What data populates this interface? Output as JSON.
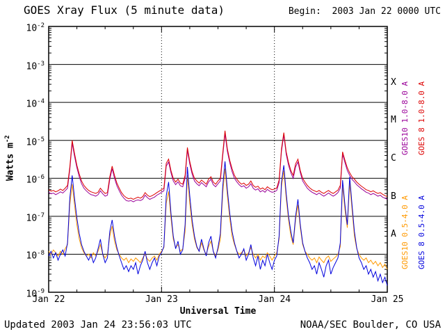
{
  "header": {
    "title": "GOES Xray Flux (5 minute data)",
    "begin": "Begin:  2003 Jan 22 0000 UTC"
  },
  "footer": {
    "updated": "Updated 2003 Jan 24 23:56:03 UTC",
    "credit": "NOAA/SEC Boulder, CO USA"
  },
  "chart_data": {
    "type": "line",
    "title": "GOES Xray Flux (5 minute data)",
    "xlabel": "Universal Time",
    "ylabel": {
      "base": "Watts m",
      "exp": "-2"
    },
    "y_scale": "log",
    "ylim_exponents": [
      -9,
      -2
    ],
    "y_tick_exponents": [
      -2,
      -3,
      -4,
      -5,
      -6,
      -7,
      -8,
      -9
    ],
    "x_range_hours": 72,
    "x_step_hours": 0.5,
    "x_minor_tick_hours": 6,
    "x_tick_hours": [
      0,
      24,
      48,
      72
    ],
    "x_tick_labels": [
      "Jan 22",
      "Jan 23",
      "Jan 24",
      "Jan 25"
    ],
    "grid": {
      "horizontal_decade_lines": true,
      "vertical_day_lines": "dotted",
      "legend_position": "right-rotated"
    },
    "flux_classes": [
      {
        "label": "X",
        "log_center": -3.5
      },
      {
        "label": "M",
        "log_center": -4.5
      },
      {
        "label": "C",
        "log_center": -5.5
      },
      {
        "label": "B",
        "log_center": -6.5
      },
      {
        "label": "A",
        "log_center": -7.5
      }
    ],
    "series": [
      {
        "id": "goes10-long",
        "name": "GOES10 1.0-8.0 A",
        "color": "#990099",
        "values": [
          4.3e-07,
          3.9e-07,
          4.1e-07,
          3.7e-07,
          4e-07,
          4.4e-07,
          4.1e-07,
          4.7e-07,
          5.5e-07,
          1.7e-06,
          8.5e-06,
          3.8e-06,
          1.9e-06,
          1.1e-06,
          7.2e-07,
          5.5e-07,
          4.7e-07,
          4.1e-07,
          3.7e-07,
          3.6e-07,
          3.4e-07,
          3.7e-07,
          4.7e-07,
          3.9e-07,
          3.4e-07,
          3.6e-07,
          9.4e-07,
          1.8e-06,
          1e-06,
          6.4e-07,
          4.7e-07,
          3.6e-07,
          3e-07,
          2.6e-07,
          2.5e-07,
          2.6e-07,
          2.4e-07,
          2.6e-07,
          2.7e-07,
          2.6e-07,
          2.8e-07,
          3.6e-07,
          3.1e-07,
          2.8e-07,
          3e-07,
          3.2e-07,
          3.6e-07,
          3.9e-07,
          4.3e-07,
          4.7e-07,
          2.1e-06,
          2.7e-06,
          1.4e-06,
          8.5e-07,
          6.8e-07,
          8.1e-07,
          6.4e-07,
          6e-07,
          1e-06,
          5.5e-06,
          2.4e-06,
          1.3e-06,
          8.5e-07,
          7.2e-07,
          6.4e-07,
          7.7e-07,
          6.8e-07,
          6e-07,
          8.1e-07,
          9.4e-07,
          6.8e-07,
          6e-07,
          7.2e-07,
          8.5e-07,
          3.8e-06,
          1.5e-05,
          5.1e-06,
          2.6e-06,
          1.5e-06,
          1e-06,
          8.1e-07,
          6.8e-07,
          6e-07,
          6.4e-07,
          5.5e-07,
          6e-07,
          7.2e-07,
          5.5e-07,
          4.9e-07,
          5.3e-07,
          4.4e-07,
          4.8e-07,
          4.3e-07,
          5.1e-07,
          4.6e-07,
          4.3e-07,
          4.4e-07,
          4.8e-07,
          7.7e-07,
          5.1e-06,
          1.4e-05,
          4.3e-06,
          2.2e-06,
          1.4e-06,
          1e-06,
          2e-06,
          2.7e-06,
          1.4e-06,
          8.5e-07,
          6.8e-07,
          5.5e-07,
          4.8e-07,
          4.3e-07,
          4e-07,
          3.7e-07,
          4.1e-07,
          3.7e-07,
          3.4e-07,
          3.7e-07,
          4.1e-07,
          3.7e-07,
          3.4e-07,
          3.7e-07,
          4.2e-07,
          5.5e-07,
          4.3e-06,
          2.6e-06,
          1.6e-06,
          1.2e-06,
          9.4e-07,
          8.1e-07,
          6.8e-07,
          6e-07,
          5.3e-07,
          4.8e-07,
          4.3e-07,
          4.1e-07,
          3.7e-07,
          4e-07,
          3.7e-07,
          3.4e-07,
          3.6e-07,
          3.2e-07,
          3e-07,
          2.8e-07
        ]
      },
      {
        "id": "goes10-short",
        "name": "GOES10 0.5-4.0 A",
        "color": "#ff9900",
        "values": [
          1.2e-08,
          1e-08,
          1.3e-08,
          1.1e-08,
          9e-09,
          1.2e-08,
          1e-08,
          1.4e-08,
          1.8e-08,
          2e-07,
          7e-07,
          2e-07,
          6e-08,
          2.5e-08,
          1.5e-08,
          1.1e-08,
          9e-09,
          1e-08,
          8e-09,
          1.1e-08,
          9e-09,
          1.2e-08,
          1.8e-08,
          1e-08,
          8e-09,
          1e-08,
          3e-08,
          5.5e-08,
          2.2e-08,
          1.3e-08,
          1e-08,
          8e-09,
          7e-09,
          8e-09,
          6e-09,
          7.5e-09,
          6.5e-09,
          8e-09,
          7e-09,
          6e-09,
          8e-09,
          1e-08,
          7.5e-09,
          6.5e-09,
          8e-09,
          9e-09,
          7e-09,
          1e-08,
          1.2e-08,
          1.5e-08,
          2.2e-07,
          4.5e-07,
          9e-08,
          2.5e-08,
          1.5e-08,
          1.8e-08,
          1.2e-08,
          1.4e-08,
          4e-08,
          1.2e-06,
          2.2e-07,
          6e-08,
          2.5e-08,
          1.5e-08,
          1.2e-08,
          2e-08,
          1.3e-08,
          1e-08,
          1.6e-08,
          2.2e-08,
          1.2e-08,
          9e-09,
          1.3e-08,
          2.5e-08,
          4e-07,
          1.8e-06,
          3.5e-07,
          9e-08,
          3e-08,
          1.8e-08,
          1.2e-08,
          1e-08,
          1.1e-08,
          1.3e-08,
          9e-09,
          1.1e-08,
          1.5e-08,
          1e-08,
          8e-09,
          1e-08,
          7e-09,
          9e-09,
          8e-09,
          1.1e-08,
          9e-09,
          7e-09,
          9e-09,
          1.1e-08,
          2.5e-08,
          6e-07,
          1.6e-06,
          3e-07,
          8e-08,
          3e-08,
          1.8e-08,
          8e-08,
          2e-07,
          5e-08,
          1.8e-08,
          1.2e-08,
          1e-08,
          8e-09,
          7e-09,
          8e-09,
          6e-09,
          8.5e-09,
          7e-09,
          6e-09,
          8e-09,
          9e-09,
          6.5e-09,
          7.5e-09,
          8.5e-09,
          1e-08,
          1.6e-08,
          6.5e-07,
          1.5e-07,
          5e-08,
          7.5e-07,
          1.5e-07,
          3e-08,
          1.4e-08,
          1e-08,
          8e-09,
          7e-09,
          8e-09,
          6e-09,
          7e-09,
          5.5e-09,
          6.5e-09,
          5e-09,
          6e-09,
          4.5e-09,
          5.5e-09,
          4e-09
        ]
      },
      {
        "id": "goes8-long",
        "name": "GOES 8 1.0-8.0 A",
        "color": "#dd0000",
        "values": [
          5e-07,
          4.6e-07,
          4.8e-07,
          4.4e-07,
          4.7e-07,
          5.2e-07,
          4.8e-07,
          5.5e-07,
          6.5e-07,
          2e-06,
          1e-05,
          4.5e-06,
          2.2e-06,
          1.3e-06,
          8.5e-07,
          6.5e-07,
          5.5e-07,
          4.8e-07,
          4.4e-07,
          4.2e-07,
          4e-07,
          4.3e-07,
          5.5e-07,
          4.6e-07,
          4e-07,
          4.2e-07,
          1.1e-06,
          2.1e-06,
          1.2e-06,
          7.5e-07,
          5.5e-07,
          4.2e-07,
          3.5e-07,
          3.1e-07,
          2.9e-07,
          3e-07,
          2.8e-07,
          3e-07,
          3.2e-07,
          3e-07,
          3.3e-07,
          4.2e-07,
          3.6e-07,
          3.3e-07,
          3.5e-07,
          3.8e-07,
          4.2e-07,
          4.6e-07,
          5e-07,
          5.5e-07,
          2.5e-06,
          3.2e-06,
          1.6e-06,
          1e-06,
          8e-07,
          9.5e-07,
          7.5e-07,
          7e-07,
          1.2e-06,
          6.5e-06,
          2.8e-06,
          1.5e-06,
          1e-06,
          8.5e-07,
          7.5e-07,
          9e-07,
          8e-07,
          7e-07,
          9.5e-07,
          1.1e-06,
          8e-07,
          7e-07,
          8.5e-07,
          1e-06,
          4.5e-06,
          1.8e-05,
          6e-06,
          3e-06,
          1.8e-06,
          1.2e-06,
          9.5e-07,
          8e-07,
          7e-07,
          7.5e-07,
          6.5e-07,
          7e-07,
          8.5e-07,
          6.5e-07,
          5.8e-07,
          6.2e-07,
          5.2e-07,
          5.6e-07,
          5e-07,
          6e-07,
          5.4e-07,
          5e-07,
          5.2e-07,
          5.6e-07,
          9e-07,
          6e-06,
          1.6e-05,
          5e-06,
          2.6e-06,
          1.6e-06,
          1.2e-06,
          2.4e-06,
          3.2e-06,
          1.6e-06,
          1e-06,
          8e-07,
          6.5e-07,
          5.6e-07,
          5e-07,
          4.7e-07,
          4.4e-07,
          4.8e-07,
          4.3e-07,
          4e-07,
          4.4e-07,
          4.8e-07,
          4.3e-07,
          4e-07,
          4.4e-07,
          4.9e-07,
          6.5e-07,
          5e-06,
          3e-06,
          1.9e-06,
          1.4e-06,
          1.1e-06,
          9.5e-07,
          8e-07,
          7e-07,
          6.2e-07,
          5.6e-07,
          5e-07,
          4.8e-07,
          4.4e-07,
          4.7e-07,
          4.3e-07,
          4e-07,
          4.2e-07,
          3.8e-07,
          3.5e-07,
          3.3e-07
        ]
      },
      {
        "id": "goes8-short",
        "name": "GOES 8 0.5-4.0 A",
        "color": "#0000dd",
        "values": [
          9e-09,
          1.2e-08,
          8e-09,
          1.1e-08,
          7e-09,
          1e-08,
          1.3e-08,
          9e-09,
          2e-08,
          3e-07,
          1.2e-06,
          3e-07,
          9e-08,
          3.5e-08,
          1.8e-08,
          1.2e-08,
          9e-09,
          7e-09,
          1e-08,
          6e-09,
          8e-09,
          1.4e-08,
          2.5e-08,
          1e-08,
          6e-09,
          8e-09,
          4e-08,
          8e-08,
          3e-08,
          1.5e-08,
          9e-09,
          6e-09,
          4e-09,
          5e-09,
          3.5e-09,
          5e-09,
          4e-09,
          6e-09,
          3e-09,
          5e-09,
          7e-09,
          1.2e-08,
          6e-09,
          4e-09,
          6e-09,
          8e-09,
          5e-09,
          9e-09,
          1.1e-08,
          1.6e-08,
          3.5e-07,
          8e-07,
          1.2e-07,
          3e-08,
          1.4e-08,
          2.2e-08,
          1e-08,
          1.3e-08,
          6e-08,
          2e-06,
          3.5e-07,
          8e-08,
          3e-08,
          1.6e-08,
          1.2e-08,
          2.5e-08,
          1.4e-08,
          9e-09,
          2e-08,
          3e-08,
          1.2e-08,
          8e-09,
          1.5e-08,
          3.5e-08,
          6e-07,
          2.8e-06,
          5e-07,
          1.2e-07,
          4e-08,
          2e-08,
          1.2e-08,
          8e-09,
          1e-08,
          1.4e-08,
          7e-09,
          1e-08,
          1.8e-08,
          8e-09,
          5e-09,
          9e-09,
          4e-09,
          7e-09,
          5e-09,
          1e-08,
          6e-09,
          4e-09,
          7e-09,
          9e-09,
          3e-08,
          8e-07,
          2.2e-06,
          4e-07,
          1e-07,
          4e-08,
          2e-08,
          1e-07,
          2.8e-07,
          6e-08,
          2e-08,
          1.2e-08,
          8e-09,
          6e-09,
          4e-09,
          5e-09,
          3e-09,
          6e-09,
          4e-09,
          2.5e-09,
          5e-09,
          7e-09,
          3e-09,
          4.5e-09,
          6e-09,
          8e-09,
          2e-08,
          9e-07,
          2e-07,
          6e-08,
          1.1e-06,
          2e-07,
          4e-08,
          1.5e-08,
          8e-09,
          6e-09,
          4e-09,
          5e-09,
          3e-09,
          4e-09,
          2.5e-09,
          3.5e-09,
          2e-09,
          3e-09,
          1.8e-09,
          2.5e-09,
          1.5e-09
        ]
      }
    ]
  }
}
